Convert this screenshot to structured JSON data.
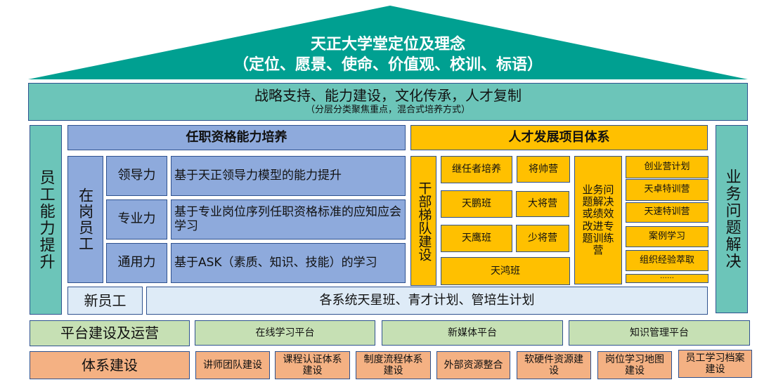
{
  "colors": {
    "roof": "#00a091",
    "teal": "#6cc5b9",
    "blue": "#8eaadc",
    "orange": "#ffc000",
    "green": "#c6e0b4",
    "salmon": "#f4b183",
    "light_blue": "#deebf7",
    "border": "#2f528f"
  },
  "roof": {
    "line1": "天正大学堂定位及理念",
    "line2": "（定位、愿景、使命、价值观、校训、标语）"
  },
  "banner": {
    "title": "战略支持、能力建设，文化传承，人才复制",
    "subtitle": "（分层分类聚焦重点，混合式培养方式）"
  },
  "left_pillar": "员工能力提升",
  "right_pillar": "业务问题解决",
  "qualification": {
    "header": "任职资格能力培养",
    "group": "在岗员工",
    "rows": [
      {
        "label": "领导力",
        "desc": "基于天正领导力模型的能力提升"
      },
      {
        "label": "专业力",
        "desc": "基于专业岗位序列任职资格标准的应知应会学习"
      },
      {
        "label": "通用力",
        "desc": "基于ASK（素质、知识、技能）的学习"
      }
    ]
  },
  "new_staff": {
    "label": "新员工",
    "desc": "各系统天星班、青才计划、管培生计划"
  },
  "talent": {
    "header": "人才发展项目体系",
    "cadre": "干部梯队建设",
    "programs": [
      "继任者培养",
      "将帅营",
      "天鹏班",
      "大将营",
      "天鹰班",
      "少将营",
      "天鸿班"
    ],
    "business": "业务问题解决或绩效改进专题训练营",
    "list": [
      "创业营计划",
      "天卓特训营",
      "天速特训营",
      "案例学习",
      "组织经验萃取",
      "……"
    ]
  },
  "platform": {
    "label": "平台建设及运营",
    "items": [
      "在线学习平台",
      "新媒体平台",
      "知识管理平台"
    ]
  },
  "system": {
    "label": "体系建设",
    "items": [
      "讲师团队建设",
      "课程认证体系建设",
      "制度流程体系建设",
      "外部资源整合",
      "软硬件资源建设",
      "岗位学习地图建设",
      "员工学习档案建设"
    ]
  }
}
